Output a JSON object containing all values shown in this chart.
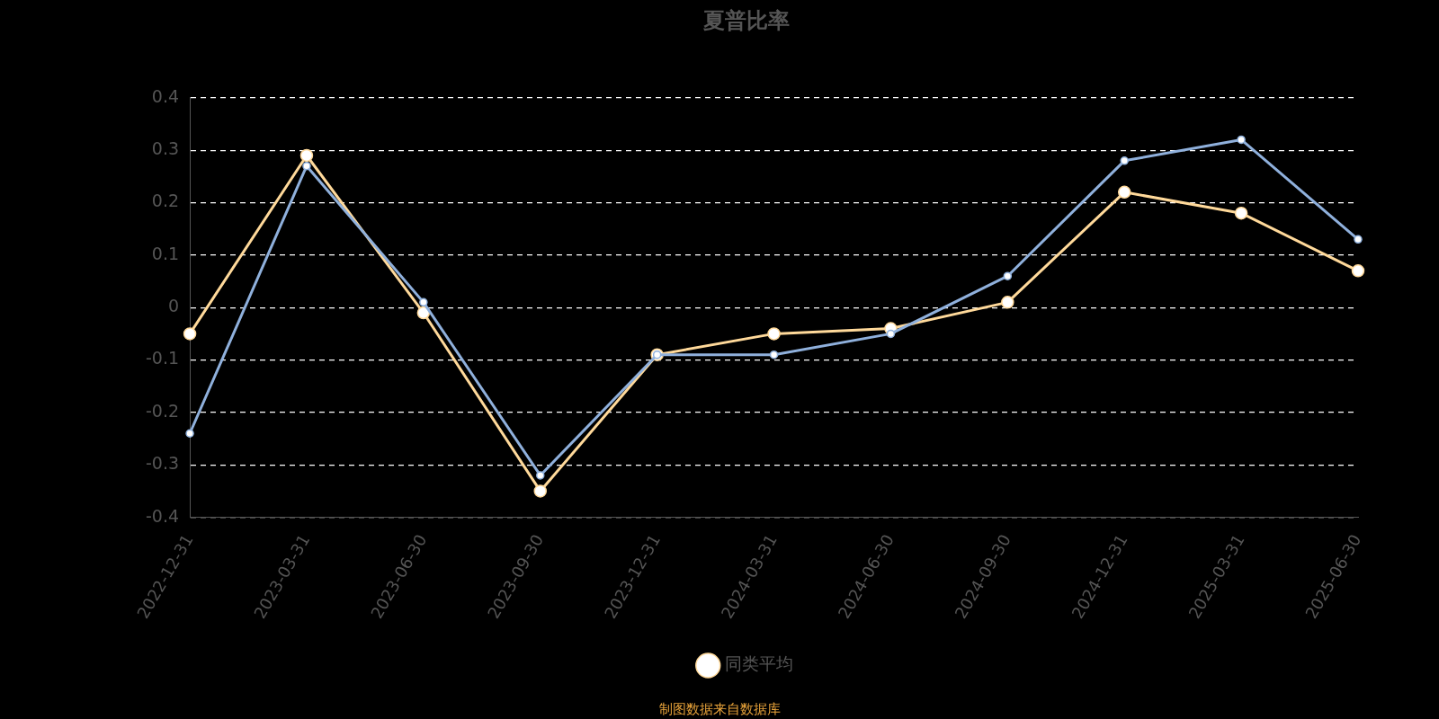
{
  "chart_data": {
    "type": "line",
    "title": "夏普比率",
    "categories": [
      "2022-12-31",
      "2023-03-31",
      "2023-06-30",
      "2023-09-30",
      "2023-12-31",
      "2024-03-31",
      "2024-06-30",
      "2024-09-30",
      "2024-12-31",
      "2025-03-31",
      "2025-06-30"
    ],
    "series": [
      {
        "color": "#8fb0dc",
        "values": [
          -0.24,
          0.27,
          0.01,
          -0.32,
          -0.09,
          -0.09,
          -0.05,
          0.06,
          0.28,
          0.32,
          0.13
        ]
      },
      {
        "name": "同类平均",
        "color": "#ffd99a",
        "values": [
          -0.05,
          0.29,
          -0.01,
          -0.35,
          -0.09,
          -0.05,
          -0.04,
          0.01,
          0.22,
          0.18,
          0.07
        ]
      }
    ],
    "ylim": [
      -0.4,
      0.4
    ],
    "yticks": [
      -0.4,
      -0.3,
      -0.2,
      -0.1,
      0,
      0.1,
      0.2,
      0.3,
      0.4
    ],
    "grid": "y",
    "legend": "bottom",
    "marker": "circle",
    "line_style": "solid",
    "annotations": [
      "制图数据来自数据库"
    ]
  }
}
